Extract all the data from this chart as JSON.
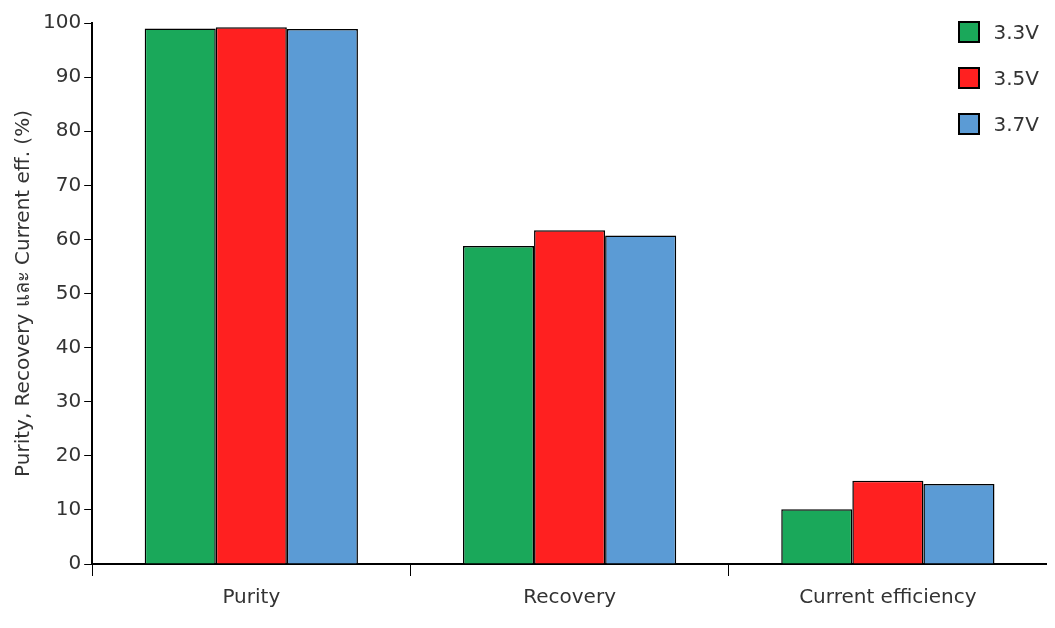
{
  "chart_data": {
    "type": "bar",
    "ylabel": "Purity, Recovery และ Current eff. (%)",
    "categories": [
      "Purity",
      "Recovery",
      "Current efficiency"
    ],
    "series": [
      {
        "name": "3.3V",
        "color": "#1aa85a",
        "values": [
          99.0,
          58.8,
          10.1
        ]
      },
      {
        "name": "3.5V",
        "color": "#ff2020",
        "values": [
          99.2,
          61.7,
          15.4
        ]
      },
      {
        "name": "3.7V",
        "color": "#5b9bd5",
        "values": [
          98.9,
          60.7,
          14.8
        ]
      }
    ],
    "ylim": [
      0,
      100
    ],
    "yticks": [
      0,
      10,
      20,
      30,
      40,
      50,
      60,
      70,
      80,
      90,
      100
    ],
    "grid": false,
    "legend": "top right"
  }
}
